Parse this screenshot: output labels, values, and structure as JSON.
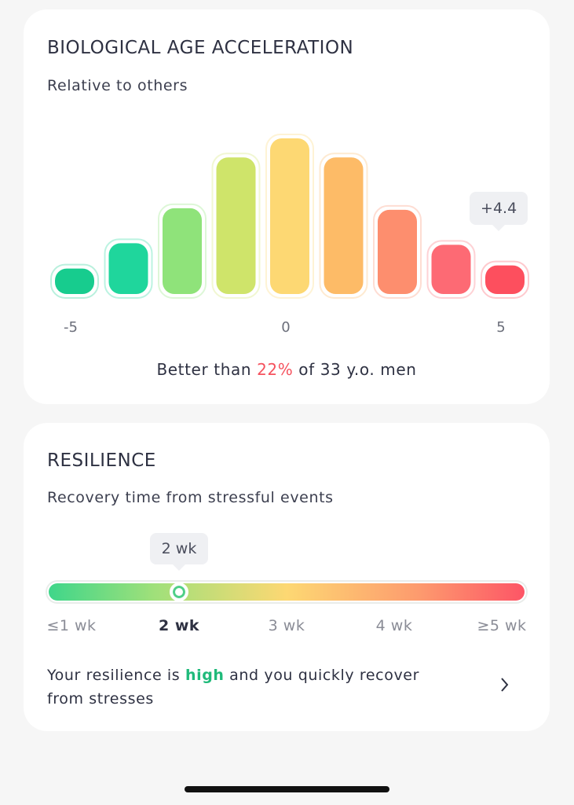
{
  "age": {
    "title": "BIOLOGICAL AGE ACCELERATION",
    "subtitle": "Relative to others",
    "chart": {
      "type": "bar",
      "values": [
        18,
        34,
        56,
        88,
        100,
        88,
        55,
        33,
        20
      ],
      "colors": [
        "#17cc8e",
        "#1fd69c",
        "#8fe37a",
        "#cfe46a",
        "#fdd873",
        "#fdbb67",
        "#fd8e6e",
        "#fd6a74",
        "#fd4f5e"
      ],
      "xlim": [
        -5,
        5
      ],
      "xticks": [
        -5,
        0,
        5
      ],
      "marker": {
        "value": 4.4,
        "label": "+4.4"
      }
    },
    "summary": {
      "before": "Better than ",
      "highlight": "22%",
      "after": " of 33 y.o. men"
    }
  },
  "resilience": {
    "title": "RESILIENCE",
    "subtitle": "Recovery time from stressful events",
    "current": "2 wk",
    "scale": [
      "≤1 wk",
      "2 wk",
      "3 wk",
      "4 wk",
      "≥5 wk"
    ],
    "text": {
      "before": "Your resilience is ",
      "highlight": "high",
      "after": " and you quickly recover from stresses"
    }
  }
}
